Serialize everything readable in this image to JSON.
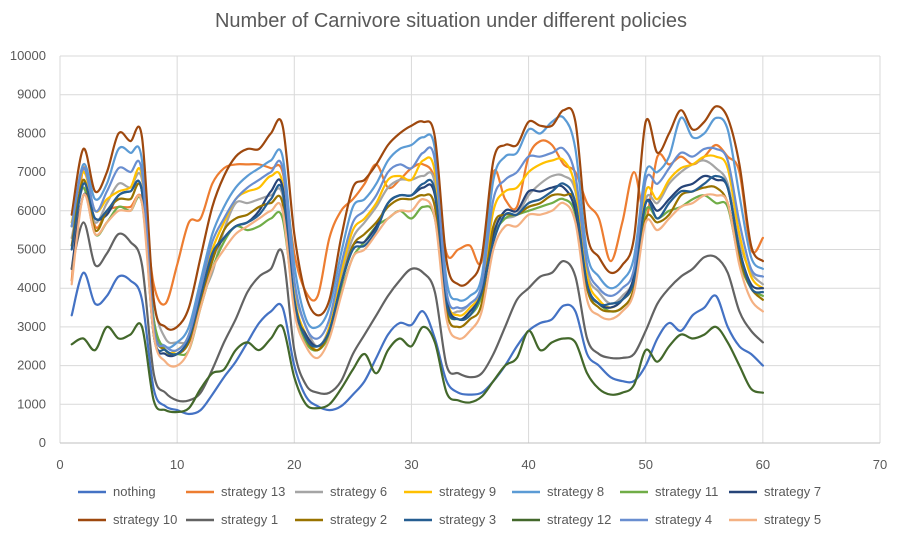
{
  "chart_data": {
    "type": "line",
    "title": "Number of Carnivore situation under different policies",
    "xlabel": "",
    "ylabel": "",
    "xlim": [
      0,
      70
    ],
    "ylim": [
      0,
      10000
    ],
    "x_ticks": [
      "0",
      "10",
      "20",
      "30",
      "40",
      "50",
      "60",
      "70"
    ],
    "y_ticks": [
      "0",
      "1000",
      "2000",
      "3000",
      "4000",
      "5000",
      "6000",
      "7000",
      "8000",
      "9000",
      "10000"
    ],
    "grid": true,
    "legend_position": "bottom",
    "x": [
      1,
      2,
      3,
      4,
      5,
      6,
      7,
      8,
      9,
      10,
      11,
      12,
      13,
      14,
      15,
      16,
      17,
      18,
      19,
      20,
      21,
      22,
      23,
      24,
      25,
      26,
      27,
      28,
      29,
      30,
      31,
      32,
      33,
      34,
      35,
      36,
      37,
      38,
      39,
      40,
      41,
      42,
      43,
      44,
      45,
      46,
      47,
      48,
      49,
      50,
      51,
      52,
      53,
      54,
      55,
      56,
      57,
      58,
      59,
      60
    ],
    "series": [
      {
        "name": "nothing",
        "color": "#4472c4",
        "values": [
          3300,
          4400,
          3600,
          3800,
          4300,
          4200,
          3700,
          1400,
          950,
          850,
          750,
          850,
          1250,
          1700,
          2100,
          2600,
          3100,
          3400,
          3500,
          2000,
          1200,
          950,
          850,
          950,
          1250,
          1600,
          2200,
          2800,
          3100,
          3050,
          3400,
          2700,
          1600,
          1300,
          1250,
          1300,
          1600,
          2000,
          2500,
          2900,
          3100,
          3200,
          3550,
          3400,
          2300,
          2000,
          1700,
          1600,
          1600,
          2000,
          2700,
          3100,
          2900,
          3300,
          3500,
          3800,
          3000,
          2500,
          2300,
          2000
        ]
      },
      {
        "name": "strategy 13",
        "color": "#ed7d31",
        "values": [
          4200,
          7100,
          5600,
          6000,
          6100,
          6100,
          6300,
          4100,
          3600,
          4600,
          5700,
          5800,
          6700,
          7100,
          7200,
          7200,
          7200,
          7100,
          7000,
          4900,
          3900,
          3800,
          5300,
          6000,
          6300,
          6700,
          7200,
          6600,
          6800,
          7100,
          7200,
          6800,
          4900,
          5000,
          5100,
          4700,
          7000,
          6300,
          6100,
          7400,
          7800,
          7700,
          7200,
          7000,
          6200,
          5800,
          4700,
          5700,
          7000,
          5800,
          7400,
          7200,
          7400,
          7200,
          7400,
          7700,
          7400,
          7000,
          5000,
          5300
        ]
      },
      {
        "name": "strategy 6",
        "color": "#a5a5a5",
        "values": [
          5300,
          6600,
          5700,
          6200,
          6700,
          6600,
          6800,
          3700,
          2700,
          2600,
          2700,
          3700,
          4400,
          5500,
          6200,
          6200,
          6300,
          6400,
          6400,
          4000,
          3000,
          2500,
          3000,
          4300,
          5300,
          5700,
          6100,
          6600,
          6800,
          6800,
          6900,
          6700,
          3700,
          3400,
          3600,
          4000,
          5600,
          5800,
          5900,
          6400,
          6700,
          6900,
          6900,
          6500,
          4400,
          3900,
          3600,
          3800,
          4300,
          6300,
          6200,
          6700,
          7000,
          7200,
          7300,
          7100,
          6700,
          5200,
          4400,
          4100
        ]
      },
      {
        "name": "strategy 9",
        "color": "#ffc000",
        "values": [
          5700,
          7000,
          6000,
          6300,
          6500,
          6600,
          6900,
          3200,
          2400,
          2400,
          2800,
          4000,
          5000,
          5700,
          6300,
          6500,
          6600,
          6900,
          6700,
          3800,
          2800,
          2400,
          3000,
          4400,
          5500,
          5800,
          6200,
          6800,
          6900,
          6800,
          7300,
          7000,
          3800,
          3300,
          3500,
          4000,
          6000,
          6500,
          6600,
          7000,
          7200,
          7300,
          7300,
          6600,
          4300,
          3700,
          3500,
          3700,
          4200,
          6500,
          6300,
          6800,
          7100,
          7200,
          7400,
          7400,
          7100,
          5400,
          4300,
          4000
        ]
      },
      {
        "name": "strategy 8",
        "color": "#5b9bd5",
        "values": [
          5600,
          7200,
          6300,
          6700,
          7600,
          7500,
          7300,
          3200,
          2500,
          2600,
          3000,
          4200,
          5400,
          6100,
          6600,
          6900,
          7100,
          7300,
          7400,
          4600,
          3200,
          3000,
          3500,
          4900,
          6100,
          6300,
          6700,
          7300,
          7600,
          7700,
          7900,
          7600,
          4200,
          3700,
          3800,
          4300,
          6800,
          7400,
          7500,
          8100,
          8000,
          8300,
          8400,
          7600,
          4900,
          4300,
          4000,
          4200,
          4800,
          7000,
          7000,
          7400,
          8400,
          7900,
          8000,
          8400,
          8100,
          6400,
          4800,
          4500
        ]
      },
      {
        "name": "strategy 11",
        "color": "#70ad47",
        "values": [
          5600,
          6600,
          5400,
          5700,
          6100,
          6000,
          6200,
          3200,
          2400,
          2300,
          2400,
          3500,
          4500,
          5200,
          5600,
          5500,
          5600,
          5800,
          5800,
          3600,
          2600,
          2400,
          2800,
          3900,
          4800,
          5200,
          5600,
          5800,
          6000,
          5800,
          6100,
          5800,
          3500,
          3200,
          3300,
          3800,
          5300,
          5800,
          5900,
          6000,
          6100,
          6200,
          6300,
          5900,
          4000,
          3600,
          3400,
          3500,
          4000,
          6000,
          5800,
          6000,
          6100,
          6300,
          6400,
          6200,
          6100,
          4700,
          4000,
          3800
        ]
      },
      {
        "name": "strategy 7",
        "color": "#264478",
        "values": [
          4500,
          6400,
          5800,
          5900,
          6400,
          6500,
          6500,
          2800,
          2300,
          2300,
          2700,
          3800,
          4800,
          5300,
          5600,
          5700,
          6000,
          6500,
          6600,
          3600,
          2800,
          2500,
          2900,
          4100,
          5100,
          5200,
          5600,
          6200,
          6400,
          6400,
          6600,
          6400,
          3700,
          3200,
          3400,
          3900,
          5400,
          6000,
          6000,
          6500,
          6500,
          6600,
          6600,
          6000,
          4100,
          3600,
          3500,
          3700,
          4300,
          6200,
          6000,
          6300,
          6600,
          6700,
          6900,
          6800,
          6600,
          5000,
          4100,
          4000
        ]
      },
      {
        "name": "strategy 10",
        "color": "#9e480e",
        "values": [
          5900,
          7600,
          6500,
          7000,
          8000,
          7800,
          7900,
          3700,
          3000,
          3000,
          3500,
          4800,
          6100,
          6900,
          7400,
          7600,
          7600,
          8000,
          8200,
          5400,
          3800,
          3300,
          3700,
          5300,
          6600,
          6800,
          7200,
          7700,
          8000,
          8200,
          8300,
          7900,
          4700,
          4100,
          4200,
          4800,
          7300,
          7700,
          7700,
          8300,
          8200,
          8200,
          8600,
          8300,
          5400,
          4800,
          4400,
          4600,
          5300,
          8300,
          7500,
          8000,
          8600,
          8100,
          8300,
          8700,
          8400,
          7200,
          5100,
          4700
        ]
      },
      {
        "name": "strategy 1",
        "color": "#636363",
        "values": [
          4500,
          5700,
          4600,
          4900,
          5400,
          5200,
          4600,
          1800,
          1300,
          1100,
          1100,
          1300,
          1900,
          2600,
          3200,
          3900,
          4300,
          4500,
          4900,
          2400,
          1500,
          1300,
          1300,
          1600,
          2300,
          2800,
          3300,
          3800,
          4200,
          4500,
          4400,
          3900,
          2000,
          1800,
          1700,
          1800,
          2300,
          3000,
          3700,
          4000,
          4300,
          4400,
          4700,
          4300,
          2700,
          2300,
          2200,
          2200,
          2300,
          2900,
          3600,
          4000,
          4300,
          4500,
          4800,
          4800,
          4400,
          3400,
          2900,
          2600
        ]
      },
      {
        "name": "strategy 2",
        "color": "#997300",
        "values": [
          5100,
          6800,
          5500,
          6000,
          6300,
          6300,
          6500,
          3000,
          2400,
          2300,
          2600,
          3600,
          4700,
          5500,
          5800,
          5900,
          6100,
          6200,
          6200,
          3700,
          2700,
          2400,
          2900,
          4100,
          5100,
          5400,
          5700,
          6100,
          6300,
          6300,
          6400,
          6100,
          3400,
          3000,
          3200,
          3600,
          5600,
          5900,
          5900,
          6100,
          6200,
          6400,
          6400,
          6200,
          4000,
          3500,
          3400,
          3500,
          4000,
          5800,
          5700,
          5900,
          6400,
          6500,
          6600,
          6600,
          6200,
          4800,
          4000,
          3700
        ]
      },
      {
        "name": "strategy 3",
        "color": "#255e91",
        "values": [
          5000,
          6700,
          5800,
          6000,
          6400,
          6500,
          6500,
          2800,
          2400,
          2300,
          2700,
          3800,
          4900,
          5300,
          5600,
          5700,
          5900,
          6300,
          6500,
          3700,
          2700,
          2500,
          2900,
          4100,
          5000,
          5100,
          5500,
          6200,
          6400,
          6400,
          6700,
          6500,
          3600,
          3200,
          3300,
          3900,
          5200,
          5900,
          5900,
          6200,
          6300,
          6500,
          6700,
          6200,
          4100,
          3600,
          3600,
          3700,
          4200,
          6200,
          5800,
          6200,
          6500,
          6500,
          6700,
          6900,
          6600,
          5000,
          4000,
          3900
        ]
      },
      {
        "name": "strategy 12",
        "color": "#43682b",
        "values": [
          2550,
          2700,
          2400,
          3000,
          2700,
          2800,
          3000,
          1100,
          850,
          800,
          900,
          1400,
          1800,
          1900,
          2400,
          2600,
          2400,
          2700,
          3000,
          1700,
          1000,
          900,
          1000,
          1400,
          1900,
          2300,
          1800,
          2400,
          2700,
          2500,
          3000,
          2600,
          1300,
          1100,
          1050,
          1200,
          1600,
          2000,
          2200,
          2900,
          2400,
          2600,
          2700,
          2600,
          1800,
          1400,
          1250,
          1300,
          1500,
          2400,
          2100,
          2500,
          2800,
          2700,
          2800,
          3000,
          2600,
          2000,
          1400,
          1300
        ]
      },
      {
        "name": "strategy 4",
        "color": "#698ed0",
        "values": [
          5600,
          7100,
          6000,
          6500,
          7100,
          7000,
          7000,
          3000,
          2500,
          2400,
          2800,
          4000,
          5200,
          5800,
          6300,
          6600,
          6800,
          7000,
          7100,
          4200,
          3000,
          2700,
          3200,
          4600,
          5700,
          6000,
          6400,
          7000,
          7200,
          7100,
          7500,
          7300,
          3900,
          3500,
          3600,
          4100,
          6300,
          6800,
          7000,
          7400,
          7400,
          7500,
          7600,
          6900,
          4600,
          4000,
          3800,
          4000,
          4500,
          6800,
          6700,
          7100,
          7500,
          7400,
          7600,
          7600,
          7300,
          5700,
          4500,
          4300
        ]
      },
      {
        "name": "strategy 5",
        "color": "#f4b183",
        "values": [
          4100,
          6400,
          5400,
          5700,
          6000,
          6000,
          6200,
          2800,
          2100,
          2000,
          2400,
          3500,
          4500,
          5000,
          5400,
          5600,
          5800,
          6000,
          6000,
          3400,
          2500,
          2200,
          2700,
          3800,
          4800,
          5000,
          5400,
          5800,
          6000,
          6000,
          6300,
          5800,
          3200,
          2700,
          2900,
          3400,
          5000,
          5600,
          5600,
          5900,
          5900,
          6000,
          6200,
          5700,
          3700,
          3300,
          3200,
          3400,
          3900,
          5700,
          5500,
          5800,
          6100,
          6200,
          6400,
          6400,
          6200,
          4600,
          3700,
          3400
        ]
      }
    ]
  }
}
